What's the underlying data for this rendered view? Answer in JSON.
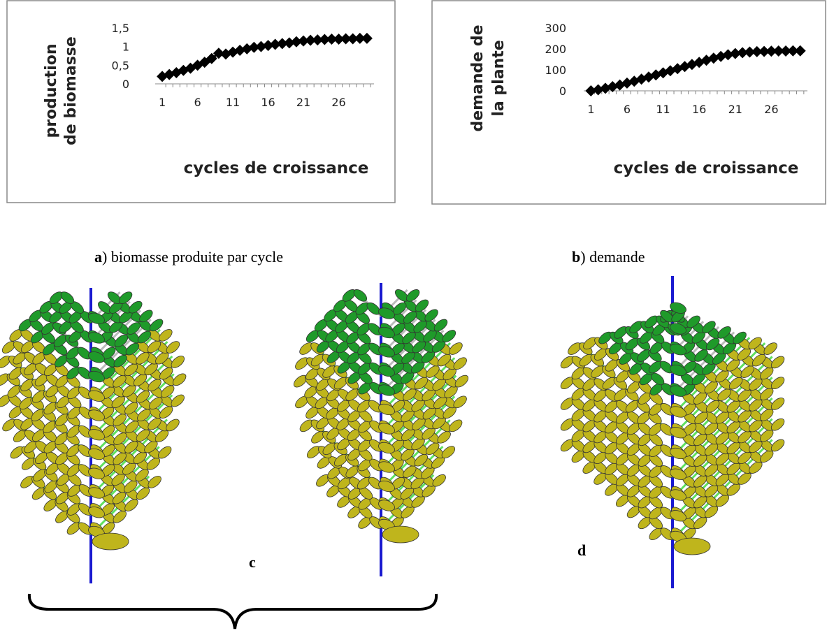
{
  "chart_data": [
    {
      "type": "line",
      "ylabel": [
        "production",
        "de biomasse"
      ],
      "xlabel": "cycles de croissance",
      "color": "#000000",
      "marker": "diamond",
      "x": [
        1,
        2,
        3,
        4,
        5,
        6,
        7,
        8,
        9,
        10,
        11,
        12,
        13,
        14,
        15,
        16,
        17,
        18,
        19,
        20,
        21,
        22,
        23,
        24,
        25,
        26,
        27,
        28,
        29,
        30
      ],
      "values": [
        0.2,
        0.25,
        0.3,
        0.36,
        0.42,
        0.5,
        0.58,
        0.68,
        0.82,
        0.8,
        0.85,
        0.9,
        0.94,
        0.98,
        1.0,
        1.03,
        1.06,
        1.08,
        1.1,
        1.13,
        1.15,
        1.17,
        1.18,
        1.19,
        1.2,
        1.2,
        1.21,
        1.21,
        1.22,
        1.22
      ],
      "xlim": [
        0,
        31
      ],
      "xticks": [
        1,
        6,
        11,
        16,
        21,
        26
      ],
      "ylim": [
        0,
        1.5
      ],
      "yticks": [
        0,
        {
          "value": 0.5,
          "label": "0,5"
        },
        1,
        {
          "value": 1.5,
          "label": "1,5"
        }
      ]
    },
    {
      "type": "line",
      "ylabel": [
        "demande de",
        "la plante"
      ],
      "xlabel": "cycles de croissance",
      "color": "#000000",
      "marker": "diamond",
      "x": [
        1,
        2,
        3,
        4,
        5,
        6,
        7,
        8,
        9,
        10,
        11,
        12,
        13,
        14,
        15,
        16,
        17,
        18,
        19,
        20,
        21,
        22,
        23,
        24,
        25,
        26,
        27,
        28,
        29,
        30
      ],
      "values": [
        0,
        5,
        12,
        20,
        28,
        37,
        46,
        56,
        66,
        76,
        86,
        96,
        106,
        116,
        126,
        136,
        146,
        156,
        164,
        172,
        178,
        182,
        185,
        187,
        188,
        189,
        190,
        190,
        191,
        191
      ],
      "xlim": [
        0,
        31
      ],
      "xticks": [
        1,
        6,
        11,
        16,
        21,
        26
      ],
      "ylim": [
        0,
        300
      ],
      "yticks": [
        0,
        100,
        200,
        300
      ]
    }
  ],
  "captions": [
    {
      "letter": "a",
      "text": ")   biomasse produite par cycle"
    },
    {
      "letter": "b",
      "text": ") demande"
    }
  ],
  "labels": [
    "c",
    "d"
  ]
}
